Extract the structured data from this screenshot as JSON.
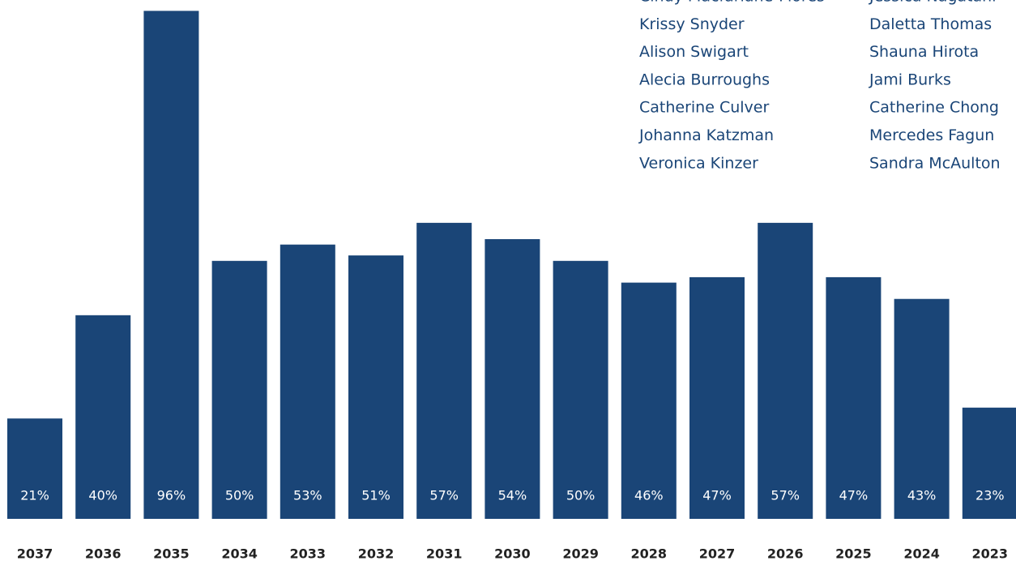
{
  "chart_data": {
    "type": "bar",
    "categories": [
      "2037",
      "2036",
      "2035",
      "2034",
      "2033",
      "2032",
      "2031",
      "2030",
      "2029",
      "2028",
      "2027",
      "2026",
      "2025",
      "2024",
      "2023"
    ],
    "values": [
      21,
      40,
      96,
      50,
      53,
      51,
      57,
      54,
      50,
      46,
      47,
      57,
      47,
      43,
      23
    ],
    "value_labels": [
      "21%",
      "40%",
      "96%",
      "50%",
      "53%",
      "51%",
      "57%",
      "54%",
      "50%",
      "46%",
      "47%",
      "57%",
      "47%",
      "43%",
      "23%"
    ],
    "color": "#1a4577",
    "ylim": [
      0,
      98
    ]
  },
  "names": {
    "columns": [
      [
        "Cindy Macfarlane-Flores",
        "Krissy Snyder",
        "Alison Swigart",
        "Alecia Burroughs",
        "Catherine Culver",
        "Johanna  Katzman",
        "Veronica Kinzer"
      ],
      [
        "Jessica Nagatani",
        "Daletta Thomas",
        "Shauna Hirota",
        "Jami Burks",
        "Catherine Chong",
        "Mercedes Fagun",
        "Sandra McAulton"
      ]
    ]
  }
}
